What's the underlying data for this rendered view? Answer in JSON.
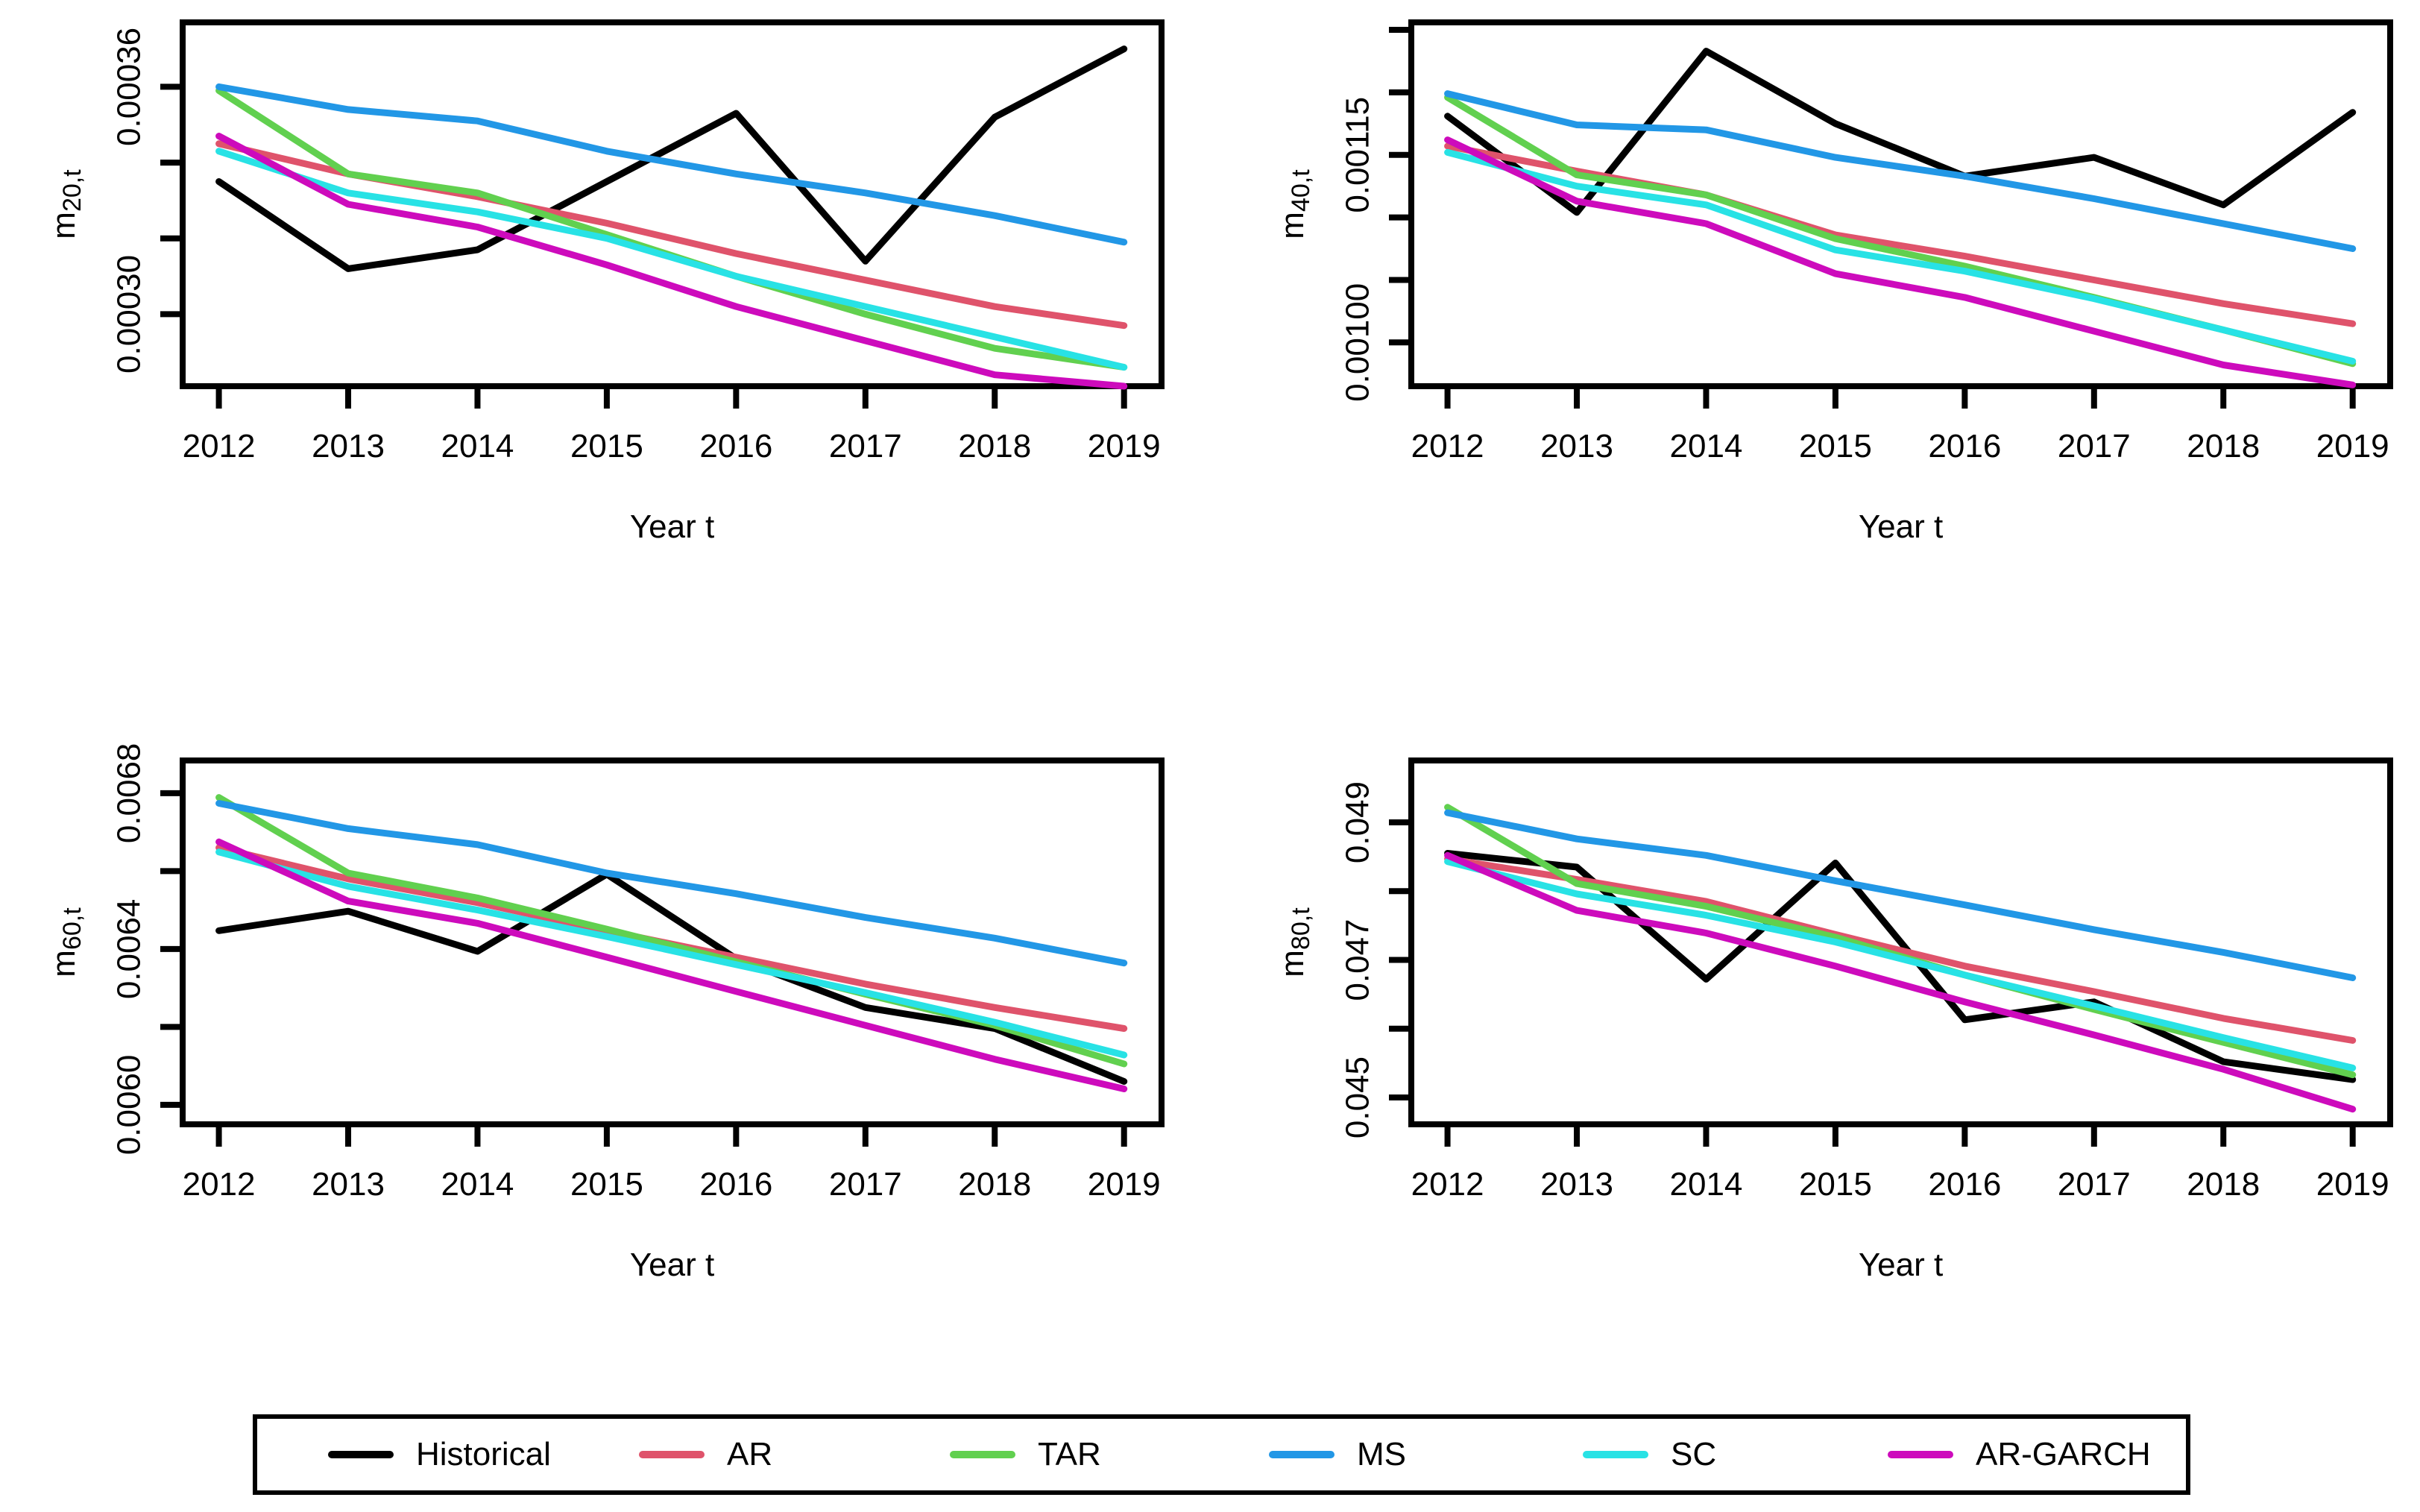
{
  "legend": {
    "items": [
      {
        "label": "Historical",
        "color": "#000000"
      },
      {
        "label": "AR",
        "color": "#DF536B"
      },
      {
        "label": "TAR",
        "color": "#61D04F"
      },
      {
        "label": "MS",
        "color": "#2297E6"
      },
      {
        "label": "SC",
        "color": "#28E2E5"
      },
      {
        "label": "AR-GARCH",
        "color": "#CD0BBC"
      }
    ]
  },
  "chart_data": [
    {
      "type": "line",
      "id": "m20",
      "position": "top-left",
      "ylabel_base": "m",
      "ylabel_sub": "20,t",
      "xlabel": "Year t",
      "x": [
        2012,
        2013,
        2014,
        2015,
        2016,
        2017,
        2018,
        2019
      ],
      "xlim": [
        2011.72,
        2019.29
      ],
      "ylim": [
        0.000281,
        0.000377
      ],
      "xticks": [
        {
          "v": 2012,
          "label": "2012"
        },
        {
          "v": 2013,
          "label": "2013"
        },
        {
          "v": 2014,
          "label": "2014"
        },
        {
          "v": 2015,
          "label": "2015"
        },
        {
          "v": 2016,
          "label": "2016"
        },
        {
          "v": 2017,
          "label": "2017"
        },
        {
          "v": 2018,
          "label": "2018"
        },
        {
          "v": 2019,
          "label": "2019"
        }
      ],
      "yticks": [
        {
          "v": 0.00036,
          "label": "0.00036"
        },
        {
          "v": 0.00034,
          "label": ""
        },
        {
          "v": 0.00032,
          "label": ""
        },
        {
          "v": 0.0003,
          "label": "0.00030"
        }
      ],
      "series": [
        {
          "name": "Historical",
          "values": [
            0.000335,
            0.000312,
            0.000317,
            0.000335,
            0.000353,
            0.000314,
            0.000352,
            0.00037
          ]
        },
        {
          "name": "AR",
          "values": [
            0.000345,
            0.000337,
            0.000331,
            0.000324,
            0.000316,
            0.000309,
            0.000302,
            0.000297
          ]
        },
        {
          "name": "TAR",
          "values": [
            0.000359,
            0.000337,
            0.000332,
            0.000321,
            0.00031,
            0.0003,
            0.000291,
            0.000286
          ]
        },
        {
          "name": "MS",
          "values": [
            0.00036,
            0.000354,
            0.000351,
            0.000343,
            0.000337,
            0.000332,
            0.000326,
            0.000319
          ]
        },
        {
          "name": "SC",
          "values": [
            0.000343,
            0.000332,
            0.000327,
            0.00032,
            0.00031,
            0.000302,
            0.000294,
            0.000286
          ]
        },
        {
          "name": "AR-GARCH",
          "values": [
            0.000347,
            0.000329,
            0.000323,
            0.000313,
            0.000302,
            0.000293,
            0.000284,
            0.000281
          ]
        }
      ]
    },
    {
      "type": "line",
      "id": "m40",
      "position": "top-right",
      "ylabel_base": "m",
      "ylabel_sub": "40,t",
      "xlabel": "Year t",
      "x": [
        2012,
        2013,
        2014,
        2015,
        2016,
        2017,
        2018,
        2019
      ],
      "xlim": [
        2011.72,
        2019.29
      ],
      "ylim": [
        0.000965,
        0.001256
      ],
      "xticks": [
        {
          "v": 2012,
          "label": "2012"
        },
        {
          "v": 2013,
          "label": "2013"
        },
        {
          "v": 2014,
          "label": "2014"
        },
        {
          "v": 2015,
          "label": "2015"
        },
        {
          "v": 2016,
          "label": "2016"
        },
        {
          "v": 2017,
          "label": "2017"
        },
        {
          "v": 2018,
          "label": "2018"
        },
        {
          "v": 2019,
          "label": "2019"
        }
      ],
      "yticks": [
        {
          "v": 0.00125,
          "label": ""
        },
        {
          "v": 0.0012,
          "label": ""
        },
        {
          "v": 0.00115,
          "label": "0.00115"
        },
        {
          "v": 0.0011,
          "label": ""
        },
        {
          "v": 0.00105,
          "label": ""
        },
        {
          "v": 0.001,
          "label": "0.00100"
        }
      ],
      "series": [
        {
          "name": "Historical",
          "values": [
            0.001181,
            0.001104,
            0.001233,
            0.001175,
            0.001133,
            0.001148,
            0.00111,
            0.001184
          ]
        },
        {
          "name": "AR",
          "values": [
            0.001157,
            0.001137,
            0.001118,
            0.001086,
            0.001069,
            0.00105,
            0.001031,
            0.001015
          ]
        },
        {
          "name": "TAR",
          "values": [
            0.001196,
            0.001134,
            0.001118,
            0.001083,
            0.001061,
            0.001036,
            0.00101,
            0.000983
          ]
        },
        {
          "name": "MS",
          "values": [
            0.001199,
            0.001174,
            0.00117,
            0.001148,
            0.001133,
            0.001115,
            0.001095,
            0.001075
          ]
        },
        {
          "name": "SC",
          "values": [
            0.001152,
            0.001125,
            0.00111,
            0.001074,
            0.001057,
            0.001035,
            0.00101,
            0.000985
          ]
        },
        {
          "name": "AR-GARCH",
          "values": [
            0.001162,
            0.001113,
            0.001095,
            0.001055,
            0.001036,
            0.001009,
            0.000982,
            0.000966
          ]
        }
      ]
    },
    {
      "type": "line",
      "id": "m60",
      "position": "bottom-left",
      "ylabel_base": "m",
      "ylabel_sub": "60,t",
      "xlabel": "Year t",
      "x": [
        2012,
        2013,
        2014,
        2015,
        2016,
        2017,
        2018,
        2019
      ],
      "xlim": [
        2011.72,
        2019.29
      ],
      "ylim": [
        0.00595,
        0.006884
      ],
      "xticks": [
        {
          "v": 2012,
          "label": "2012"
        },
        {
          "v": 2013,
          "label": "2013"
        },
        {
          "v": 2014,
          "label": "2014"
        },
        {
          "v": 2015,
          "label": "2015"
        },
        {
          "v": 2016,
          "label": "2016"
        },
        {
          "v": 2017,
          "label": "2017"
        },
        {
          "v": 2018,
          "label": "2018"
        },
        {
          "v": 2019,
          "label": "2019"
        }
      ],
      "yticks": [
        {
          "v": 0.0068,
          "label": "0.0068"
        },
        {
          "v": 0.0066,
          "label": ""
        },
        {
          "v": 0.0064,
          "label": "0.0064"
        },
        {
          "v": 0.0062,
          "label": ""
        },
        {
          "v": 0.006,
          "label": "0.0060"
        }
      ],
      "series": [
        {
          "name": "Historical",
          "values": [
            0.006447,
            0.006497,
            0.006394,
            0.006592,
            0.006375,
            0.00625,
            0.006196,
            0.00606
          ]
        },
        {
          "name": "AR",
          "values": [
            0.00666,
            0.00658,
            0.006519,
            0.006447,
            0.006379,
            0.00631,
            0.00625,
            0.006196
          ]
        },
        {
          "name": "TAR",
          "values": [
            0.006789,
            0.006595,
            0.006531,
            0.006451,
            0.006367,
            0.006284,
            0.006204,
            0.006105
          ]
        },
        {
          "name": "MS",
          "values": [
            0.006774,
            0.006709,
            0.006668,
            0.006595,
            0.006542,
            0.006481,
            0.006428,
            0.006364
          ]
        },
        {
          "name": "SC",
          "values": [
            0.006649,
            0.006561,
            0.0065,
            0.006432,
            0.00636,
            0.006288,
            0.006212,
            0.006128
          ]
        },
        {
          "name": "AR-GARCH",
          "values": [
            0.006675,
            0.006523,
            0.006466,
            0.006379,
            0.006291,
            0.006204,
            0.006117,
            0.006041
          ]
        }
      ]
    },
    {
      "type": "line",
      "id": "m80",
      "position": "bottom-right",
      "ylabel_base": "m",
      "ylabel_sub": "80,t",
      "xlabel": "Year t",
      "x": [
        2012,
        2013,
        2014,
        2015,
        2016,
        2017,
        2018,
        2019
      ],
      "xlim": [
        2011.72,
        2019.29
      ],
      "ylim": [
        0.04461,
        0.0499
      ],
      "xticks": [
        {
          "v": 2012,
          "label": "2012"
        },
        {
          "v": 2013,
          "label": "2013"
        },
        {
          "v": 2014,
          "label": "2014"
        },
        {
          "v": 2015,
          "label": "2015"
        },
        {
          "v": 2016,
          "label": "2016"
        },
        {
          "v": 2017,
          "label": "2017"
        },
        {
          "v": 2018,
          "label": "2018"
        },
        {
          "v": 2019,
          "label": "2019"
        }
      ],
      "yticks": [
        {
          "v": 0.049,
          "label": "0.049"
        },
        {
          "v": 0.048,
          "label": ""
        },
        {
          "v": 0.047,
          "label": "0.047"
        },
        {
          "v": 0.046,
          "label": ""
        },
        {
          "v": 0.045,
          "label": "0.045"
        }
      ],
      "series": [
        {
          "name": "Historical",
          "values": [
            0.04855,
            0.04835,
            0.04672,
            0.04841,
            0.04613,
            0.04639,
            0.04552,
            0.04526
          ]
        },
        {
          "name": "AR",
          "values": [
            0.04847,
            0.04817,
            0.04785,
            0.04737,
            0.04691,
            0.04654,
            0.04615,
            0.04583
          ]
        },
        {
          "name": "TAR",
          "values": [
            0.04922,
            0.04811,
            0.04778,
            0.04733,
            0.04678,
            0.04628,
            0.0458,
            0.04533
          ]
        },
        {
          "name": "MS",
          "values": [
            0.04914,
            0.04876,
            0.04852,
            0.04815,
            0.0478,
            0.04744,
            0.04711,
            0.04674
          ]
        },
        {
          "name": "SC",
          "values": [
            0.04843,
            0.04796,
            0.04765,
            0.04726,
            0.04678,
            0.04633,
            0.04587,
            0.04543
          ]
        },
        {
          "name": "AR-GARCH",
          "values": [
            0.04852,
            0.04772,
            0.04739,
            0.04691,
            0.04639,
            0.04591,
            0.04541,
            0.04483
          ]
        }
      ]
    }
  ]
}
